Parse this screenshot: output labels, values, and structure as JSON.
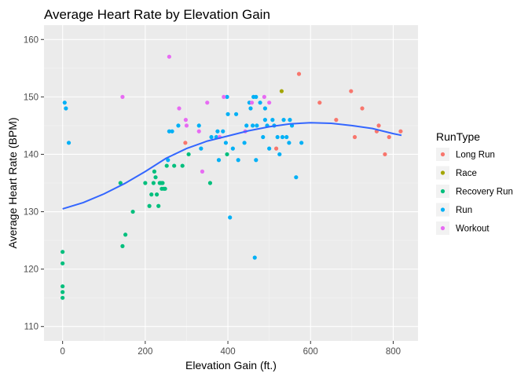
{
  "chart_data": {
    "type": "scatter",
    "title": "Average Heart Rate by Elevation Gain",
    "xlabel": "Elevation Gain (ft.)",
    "ylabel": "Average Heart Rate (BPM)",
    "xlim": [
      -45,
      860
    ],
    "ylim": [
      107.5,
      162.5
    ],
    "x_ticks": [
      0,
      200,
      400,
      600,
      800
    ],
    "y_ticks": [
      110,
      120,
      130,
      140,
      150,
      160
    ],
    "grid": true,
    "legend": {
      "title": "RunType",
      "position": "right",
      "entries": [
        "Long Run",
        "Race",
        "Recovery Run",
        "Run",
        "Workout"
      ]
    },
    "colors": {
      "Long Run": "#F8766D",
      "Race": "#A3A500",
      "Recovery Run": "#00BF7D",
      "Run": "#00B0F6",
      "Workout": "#E76BF3",
      "smooth": "#3366FF",
      "panel": "#EBEBEB",
      "grid_major": "#FFFFFF",
      "grid_minor": "#F5F5F5"
    },
    "series": [
      {
        "name": "Long Run",
        "points": [
          [
            297,
            142
          ],
          [
            517,
            141
          ],
          [
            572,
            154
          ],
          [
            622,
            149
          ],
          [
            662,
            146
          ],
          [
            698,
            151
          ],
          [
            707,
            143
          ],
          [
            725,
            148
          ],
          [
            760,
            144
          ],
          [
            765,
            145
          ],
          [
            780,
            140
          ],
          [
            790,
            143
          ],
          [
            818,
            144
          ]
        ]
      },
      {
        "name": "Race",
        "points": [
          [
            530,
            151
          ]
        ]
      },
      {
        "name": "Recovery Run",
        "points": [
          [
            0,
            123
          ],
          [
            0,
            121
          ],
          [
            0,
            117
          ],
          [
            0,
            116
          ],
          [
            0,
            115
          ],
          [
            140,
            135
          ],
          [
            145,
            124
          ],
          [
            152,
            126
          ],
          [
            170,
            130
          ],
          [
            200,
            135
          ],
          [
            210,
            131
          ],
          [
            215,
            133
          ],
          [
            220,
            135
          ],
          [
            222,
            137
          ],
          [
            225,
            136
          ],
          [
            228,
            133
          ],
          [
            232,
            131
          ],
          [
            235,
            135
          ],
          [
            238,
            135
          ],
          [
            240,
            134
          ],
          [
            242,
            135
          ],
          [
            245,
            134
          ],
          [
            248,
            134
          ],
          [
            252,
            138
          ],
          [
            270,
            138
          ],
          [
            290,
            138
          ],
          [
            305,
            140
          ],
          [
            357,
            135
          ],
          [
            398,
            140
          ]
        ]
      },
      {
        "name": "Run",
        "points": [
          [
            5,
            149
          ],
          [
            8,
            148
          ],
          [
            15,
            142
          ],
          [
            255,
            139
          ],
          [
            258,
            144
          ],
          [
            265,
            144
          ],
          [
            280,
            145
          ],
          [
            330,
            145
          ],
          [
            335,
            141
          ],
          [
            360,
            143
          ],
          [
            372,
            143
          ],
          [
            375,
            144
          ],
          [
            378,
            139
          ],
          [
            388,
            144
          ],
          [
            395,
            142
          ],
          [
            398,
            150
          ],
          [
            400,
            147
          ],
          [
            405,
            129
          ],
          [
            412,
            141
          ],
          [
            420,
            147
          ],
          [
            425,
            139
          ],
          [
            440,
            142
          ],
          [
            445,
            145
          ],
          [
            452,
            149
          ],
          [
            455,
            148
          ],
          [
            460,
            145
          ],
          [
            462,
            150
          ],
          [
            465,
            122
          ],
          [
            468,
            139
          ],
          [
            468,
            150
          ],
          [
            470,
            145
          ],
          [
            478,
            149
          ],
          [
            485,
            143
          ],
          [
            490,
            146
          ],
          [
            490,
            148
          ],
          [
            495,
            145
          ],
          [
            500,
            141
          ],
          [
            508,
            146
          ],
          [
            512,
            145
          ],
          [
            520,
            143
          ],
          [
            525,
            140
          ],
          [
            532,
            143
          ],
          [
            535,
            146
          ],
          [
            542,
            143
          ],
          [
            548,
            142
          ],
          [
            550,
            146
          ],
          [
            555,
            145
          ],
          [
            565,
            136
          ],
          [
            578,
            142
          ]
        ]
      },
      {
        "name": "Workout",
        "points": [
          [
            145,
            150
          ],
          [
            258,
            157
          ],
          [
            282,
            148
          ],
          [
            298,
            146
          ],
          [
            300,
            145
          ],
          [
            330,
            144
          ],
          [
            338,
            137
          ],
          [
            350,
            149
          ],
          [
            380,
            143
          ],
          [
            390,
            150
          ],
          [
            442,
            144
          ],
          [
            458,
            149
          ],
          [
            488,
            150
          ],
          [
            500,
            149
          ]
        ]
      }
    ],
    "smooth_line": {
      "x": [
        0,
        50,
        100,
        150,
        200,
        250,
        300,
        350,
        400,
        450,
        500,
        550,
        600,
        650,
        700,
        750,
        800,
        820
      ],
      "y": [
        130.5,
        131.6,
        133.1,
        134.9,
        137.0,
        139.3,
        141.0,
        142.3,
        143.2,
        144.1,
        144.8,
        145.3,
        145.5,
        145.4,
        145.0,
        144.5,
        143.6,
        143.3
      ]
    }
  }
}
